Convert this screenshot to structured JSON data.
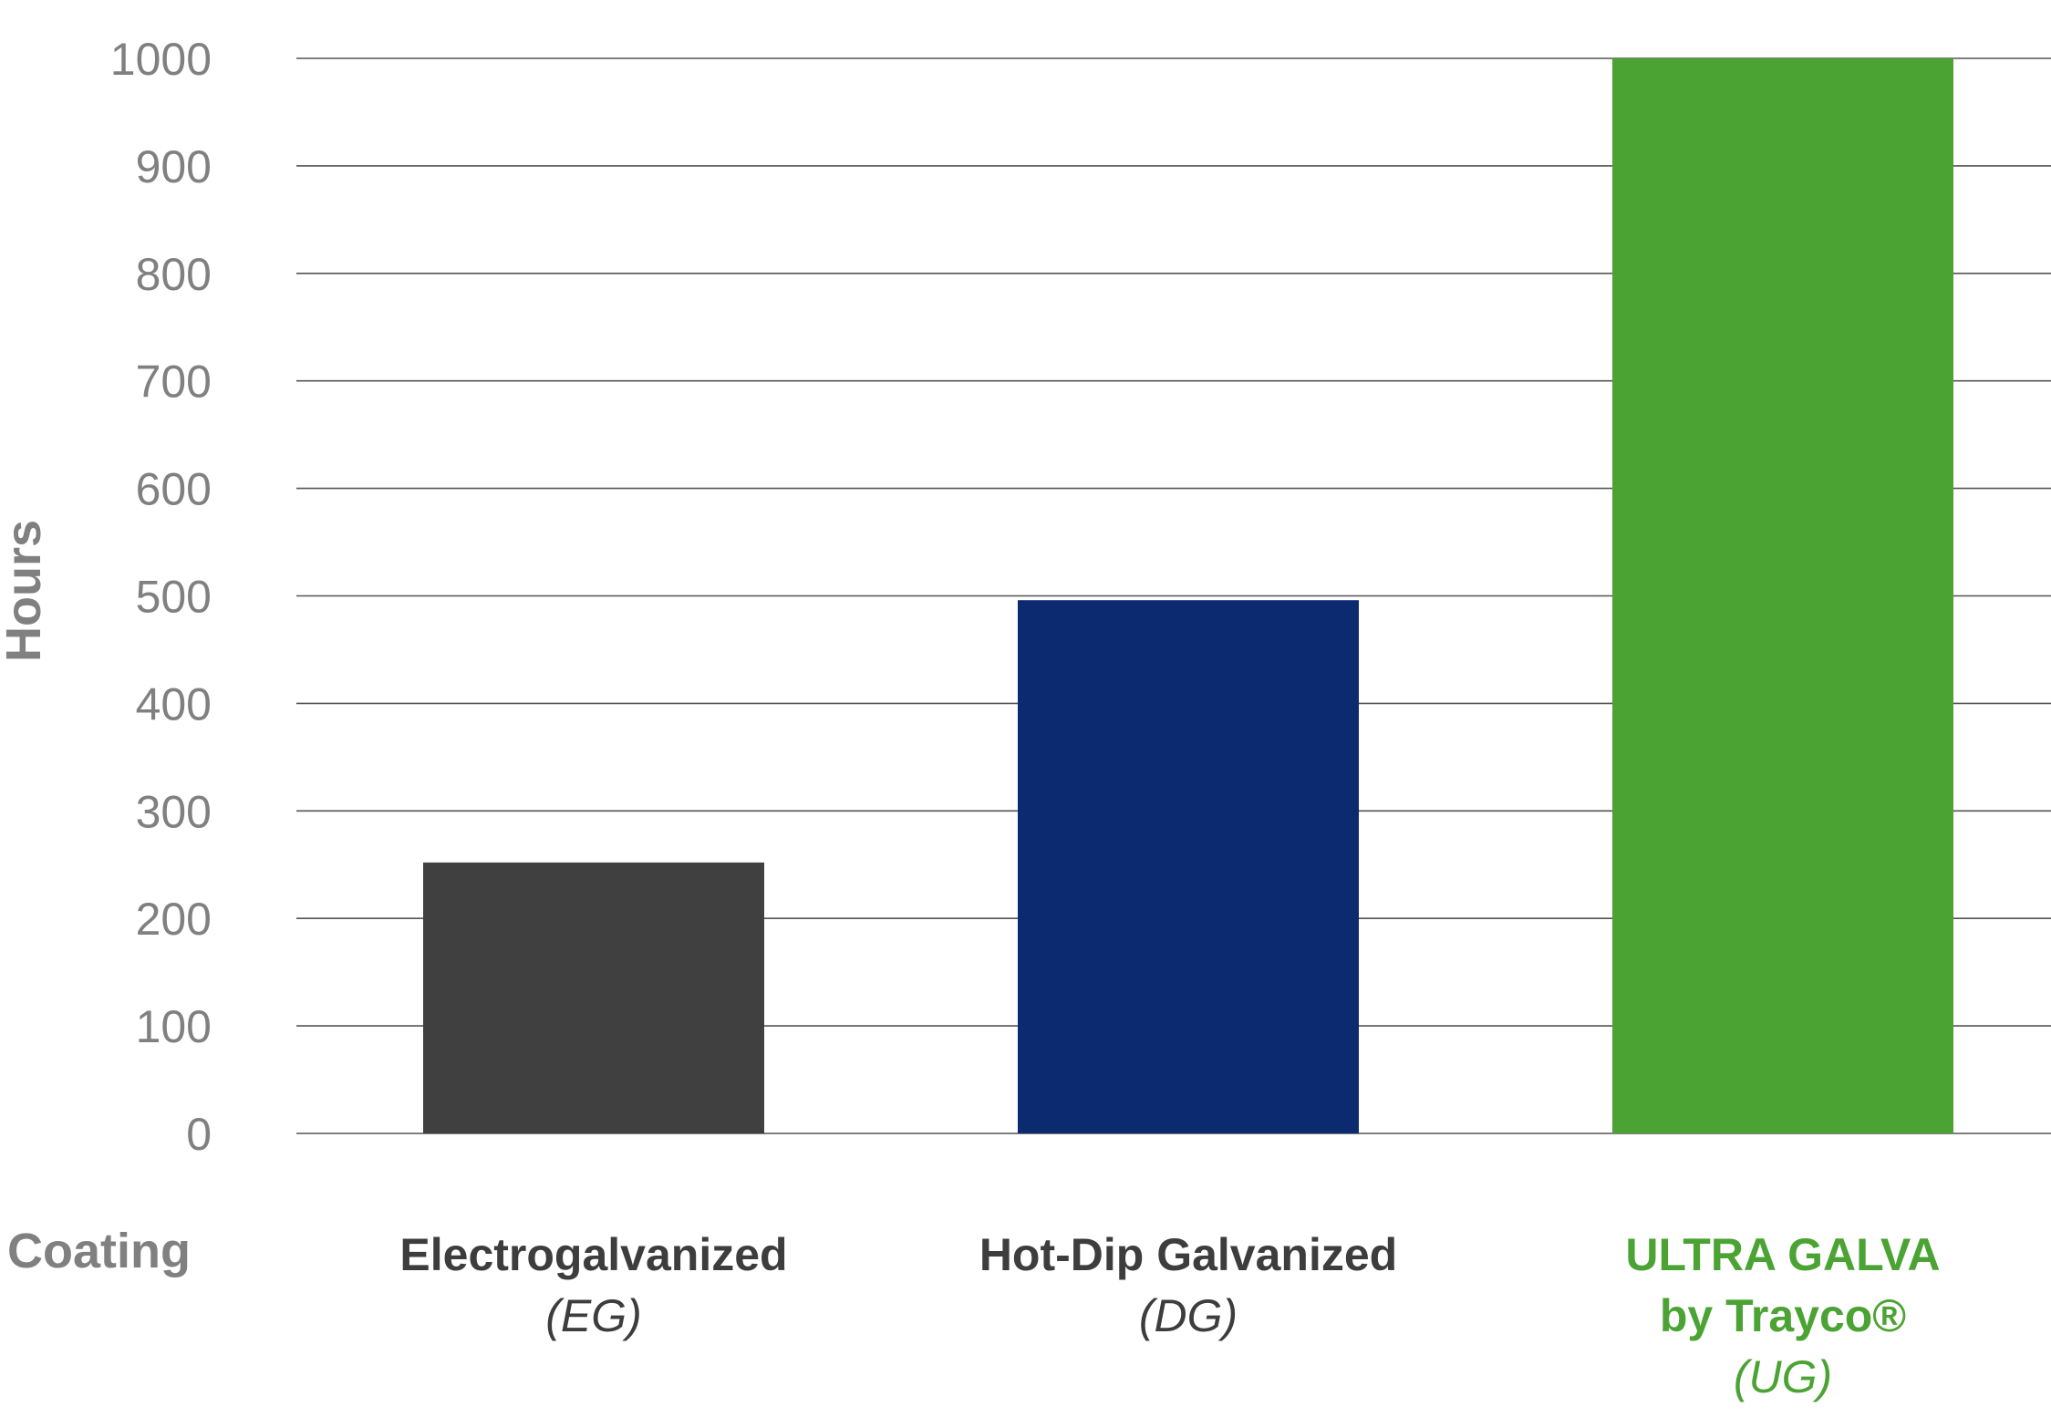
{
  "chart_data": {
    "type": "bar",
    "title": "",
    "xlabel": "Coating",
    "ylabel": "Hours",
    "ylim": [
      0,
      1000
    ],
    "yticks": [
      "0",
      "100",
      "200",
      "300",
      "400",
      "500",
      "600",
      "700",
      "800",
      "900",
      "1000"
    ],
    "grid": true,
    "categories": [
      {
        "line1": "Electrogalvanized",
        "line2": "(EG)",
        "line3": "",
        "color": "#404040",
        "value": 252
      },
      {
        "line1": "Hot-Dip Galvanized",
        "line2": "(DG)",
        "line3": "",
        "color": "#0c2a70",
        "value": 496
      },
      {
        "line1": "ULTRA GALVA",
        "line2": "by Trayco®",
        "line3": "(UG)",
        "color": "#4ba334",
        "value": 1000
      }
    ],
    "values": [
      252,
      496,
      1000
    ],
    "label_colors": [
      "#3d3d3d",
      "#3d3d3d",
      "#4ba334"
    ]
  }
}
